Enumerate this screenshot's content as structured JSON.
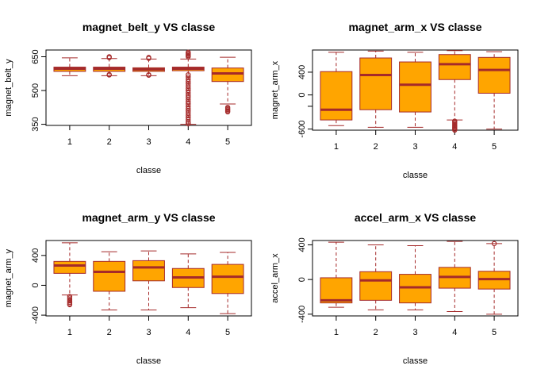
{
  "colors": {
    "box_fill": "#FFA500",
    "box_stroke": "#A52A2A",
    "axis": "#000000"
  },
  "chart_data": [
    {
      "type": "boxplot",
      "title": "magnet_belt_y VS classe",
      "xlabel": "classe",
      "ylabel": "magnet_belt_y",
      "categories": [
        "1",
        "2",
        "3",
        "4",
        "5"
      ],
      "ylim": [
        345,
        680
      ],
      "yticks": [
        350,
        500,
        650
      ],
      "ytick_labels": [
        "350",
        "500",
        "650"
      ],
      "boxes": [
        {
          "lw": 566,
          "q1": 585,
          "med": 597,
          "q3": 604,
          "uw": 645,
          "outliers": []
        },
        {
          "lw": 566,
          "q1": 585,
          "med": 597,
          "q3": 604,
          "uw": 642,
          "outliers": [
            569,
            571,
            646,
            650
          ]
        },
        {
          "lw": 566,
          "q1": 585,
          "med": 594,
          "q3": 601,
          "uw": 640,
          "outliers": [
            568,
            570,
            643,
            647
          ]
        },
        {
          "lw": 350,
          "q1": 588,
          "med": 597,
          "q3": 604,
          "uw": 640,
          "outliers": [
            352,
            360,
            370,
            380,
            390,
            400,
            410,
            420,
            430,
            440,
            450,
            460,
            470,
            480,
            490,
            500,
            510,
            520,
            530,
            540,
            550,
            560,
            570,
            650,
            655,
            660,
            665,
            670
          ]
        },
        {
          "lw": 440,
          "q1": 540,
          "med": 576,
          "q3": 600,
          "uw": 648,
          "outliers": [
            405,
            410,
            415,
            420,
            425
          ]
        }
      ]
    },
    {
      "type": "boxplot",
      "title": "magnet_arm_x VS classe",
      "xlabel": "classe",
      "ylabel": "magnet_arm_x",
      "categories": [
        "1",
        "2",
        "3",
        "4",
        "5"
      ],
      "ylim": [
        -620,
        790
      ],
      "yticks": [
        -600,
        -200,
        0,
        400
      ],
      "ytick_labels": [
        "-600",
        "",
        "0",
        "400"
      ],
      "boxes": [
        {
          "lw": -540,
          "q1": -440,
          "med": -260,
          "q3": 410,
          "uw": 750,
          "outliers": []
        },
        {
          "lw": -570,
          "q1": -260,
          "med": 350,
          "q3": 650,
          "uw": 770,
          "outliers": []
        },
        {
          "lw": -570,
          "q1": -300,
          "med": 180,
          "q3": 580,
          "uw": 750,
          "outliers": []
        },
        {
          "lw": -440,
          "q1": 270,
          "med": 540,
          "q3": 710,
          "uw": 780,
          "outliers": [
            -460,
            -480,
            -500,
            -520,
            -540,
            -560,
            -580,
            -600,
            -620
          ]
        },
        {
          "lw": -600,
          "q1": 30,
          "med": 440,
          "q3": 660,
          "uw": 760,
          "outliers": []
        }
      ]
    },
    {
      "type": "boxplot",
      "title": "magnet_arm_y VS classe",
      "xlabel": "classe",
      "ylabel": "magnet_arm_y",
      "categories": [
        "1",
        "2",
        "3",
        "4",
        "5"
      ],
      "ylim": [
        -410,
        600
      ],
      "yticks": [
        -400,
        0,
        400
      ],
      "ytick_labels": [
        "-400",
        "0",
        "400"
      ],
      "boxes": [
        {
          "lw": -130,
          "q1": 160,
          "med": 265,
          "q3": 320,
          "uw": 570,
          "outliers": [
            -150,
            -170,
            -190,
            -210,
            -230,
            -250,
            -260
          ]
        },
        {
          "lw": -330,
          "q1": -80,
          "med": 180,
          "q3": 320,
          "uw": 450,
          "outliers": []
        },
        {
          "lw": -330,
          "q1": 60,
          "med": 240,
          "q3": 330,
          "uw": 460,
          "outliers": []
        },
        {
          "lw": -300,
          "q1": -30,
          "med": 105,
          "q3": 225,
          "uw": 420,
          "outliers": []
        },
        {
          "lw": -380,
          "q1": -110,
          "med": 115,
          "q3": 280,
          "uw": 440,
          "outliers": []
        }
      ]
    },
    {
      "type": "boxplot",
      "title": "accel_arm_x VS classe",
      "xlabel": "classe",
      "ylabel": "accel_arm_x",
      "categories": [
        "1",
        "2",
        "3",
        "4",
        "5"
      ],
      "ylim": [
        -420,
        450
      ],
      "yticks": [
        -400,
        0,
        400
      ],
      "ytick_labels": [
        "-400",
        "0",
        "400"
      ],
      "boxes": [
        {
          "lw": -320,
          "q1": -270,
          "med": -240,
          "q3": 20,
          "uw": 430,
          "outliers": []
        },
        {
          "lw": -350,
          "q1": -240,
          "med": -10,
          "q3": 90,
          "uw": 400,
          "outliers": []
        },
        {
          "lw": -350,
          "q1": -270,
          "med": -90,
          "q3": 60,
          "uw": 390,
          "outliers": []
        },
        {
          "lw": -370,
          "q1": -100,
          "med": 30,
          "q3": 140,
          "uw": 440,
          "outliers": []
        },
        {
          "lw": -400,
          "q1": -110,
          "med": 5,
          "q3": 95,
          "uw": 415,
          "outliers": [
            415
          ]
        }
      ]
    }
  ]
}
